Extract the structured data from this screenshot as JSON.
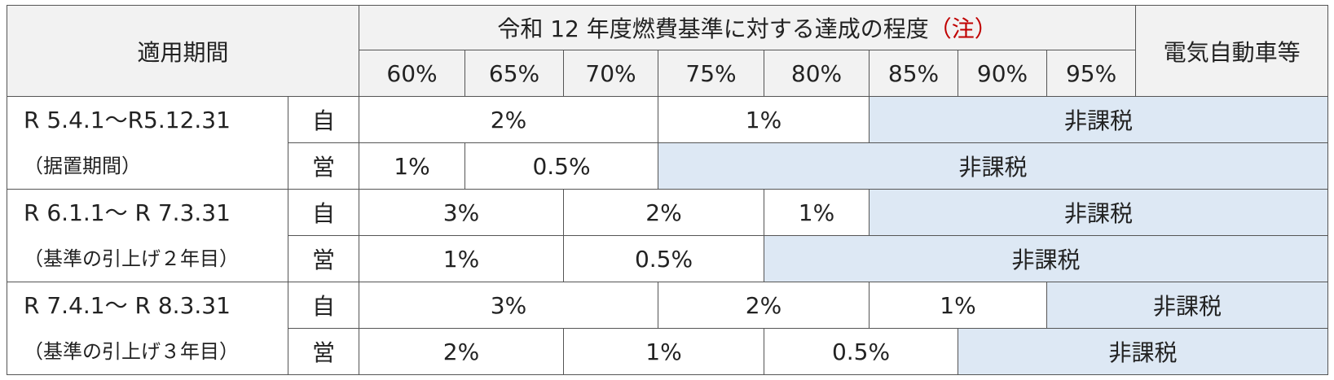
{
  "header": {
    "period": "適用期間",
    "criteria_title": "令和 12 年度燃費基準に対する達成の程度",
    "note": "（注）",
    "levels": [
      "60%",
      "65%",
      "70%",
      "75%",
      "80%",
      "85%",
      "90%",
      "95%"
    ],
    "ev": "電気自動車等"
  },
  "rows": [
    {
      "period": "R 5.4.1～R5.12.31",
      "period_sub": "（据置期間）",
      "lines": [
        {
          "kind": "自",
          "cells": [
            "2%",
            "1%",
            "非課税"
          ]
        },
        {
          "kind": "営",
          "cells": [
            "1%",
            "0.5%",
            "非課税"
          ]
        }
      ]
    },
    {
      "period": "R 6.1.1～ R 7.3.31",
      "period_sub": "（基準の引上げ２年目）",
      "lines": [
        {
          "kind": "自",
          "cells": [
            "3%",
            "2%",
            "1%",
            "非課税"
          ]
        },
        {
          "kind": "営",
          "cells": [
            "1%",
            "0.5%",
            "非課税"
          ]
        }
      ]
    },
    {
      "period": "R 7.4.1～ R 8.3.31",
      "period_sub": "（基準の引上げ３年目）",
      "lines": [
        {
          "kind": "自",
          "cells": [
            "3%",
            "2%",
            "1%",
            "非課税"
          ]
        },
        {
          "kind": "営",
          "cells": [
            "2%",
            "1%",
            "0.5%",
            "非課税"
          ]
        }
      ]
    }
  ]
}
